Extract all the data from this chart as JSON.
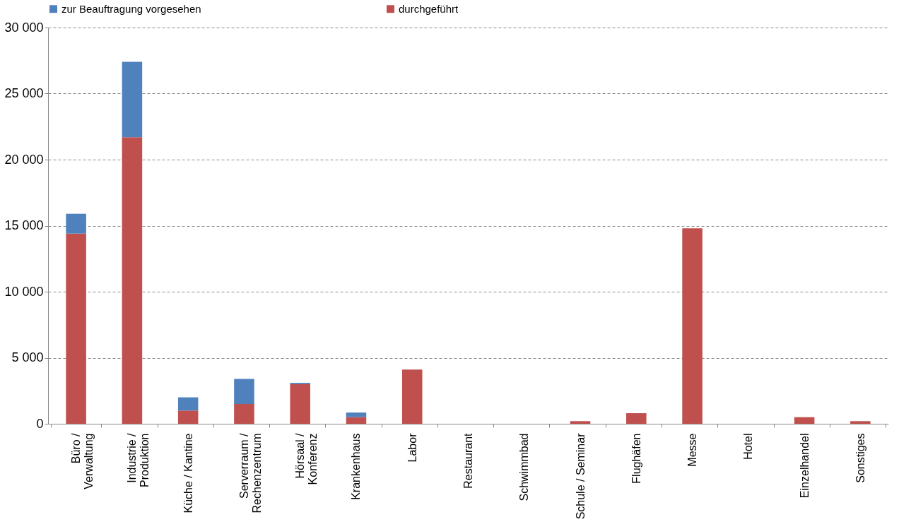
{
  "chart_data": {
    "type": "bar",
    "stacked": true,
    "categories": [
      "Büro /\nVerwaltung",
      "Industrie /\nProduktion",
      "Küche / Kantine",
      "Serverraum /\nRechenzentrum",
      "Hörsaal /\nKonferenz",
      "Krankenhaus",
      "Labor",
      "Restaurant",
      "Schwimmbad",
      "Schule / Seminar",
      "Flughäfen",
      "Messe",
      "Hotel",
      "Einzelhandel",
      "Sonstiges"
    ],
    "series": [
      {
        "name": "durchgeführt",
        "color": "#c0504d",
        "values": [
          14400,
          21700,
          1000,
          1500,
          3000,
          500,
          4100,
          0,
          0,
          200,
          800,
          14800,
          0,
          500,
          200
        ]
      },
      {
        "name": "zur Beauftragung vorgesehen",
        "color": "#4f81bd",
        "values": [
          1500,
          5700,
          1000,
          1900,
          100,
          350,
          0,
          0,
          0,
          0,
          0,
          0,
          0,
          0,
          0
        ]
      }
    ],
    "ylim": [
      0,
      30000
    ],
    "yticks": [
      {
        "value": 0,
        "label": "0"
      },
      {
        "value": 5000,
        "label": "5 000"
      },
      {
        "value": 10000,
        "label": "10 000"
      },
      {
        "value": 15000,
        "label": "15 000"
      },
      {
        "value": 20000,
        "label": "20 000"
      },
      {
        "value": 25000,
        "label": "25 000"
      },
      {
        "value": 30000,
        "label": "30 000"
      }
    ],
    "grid": "y",
    "legend": "top"
  }
}
